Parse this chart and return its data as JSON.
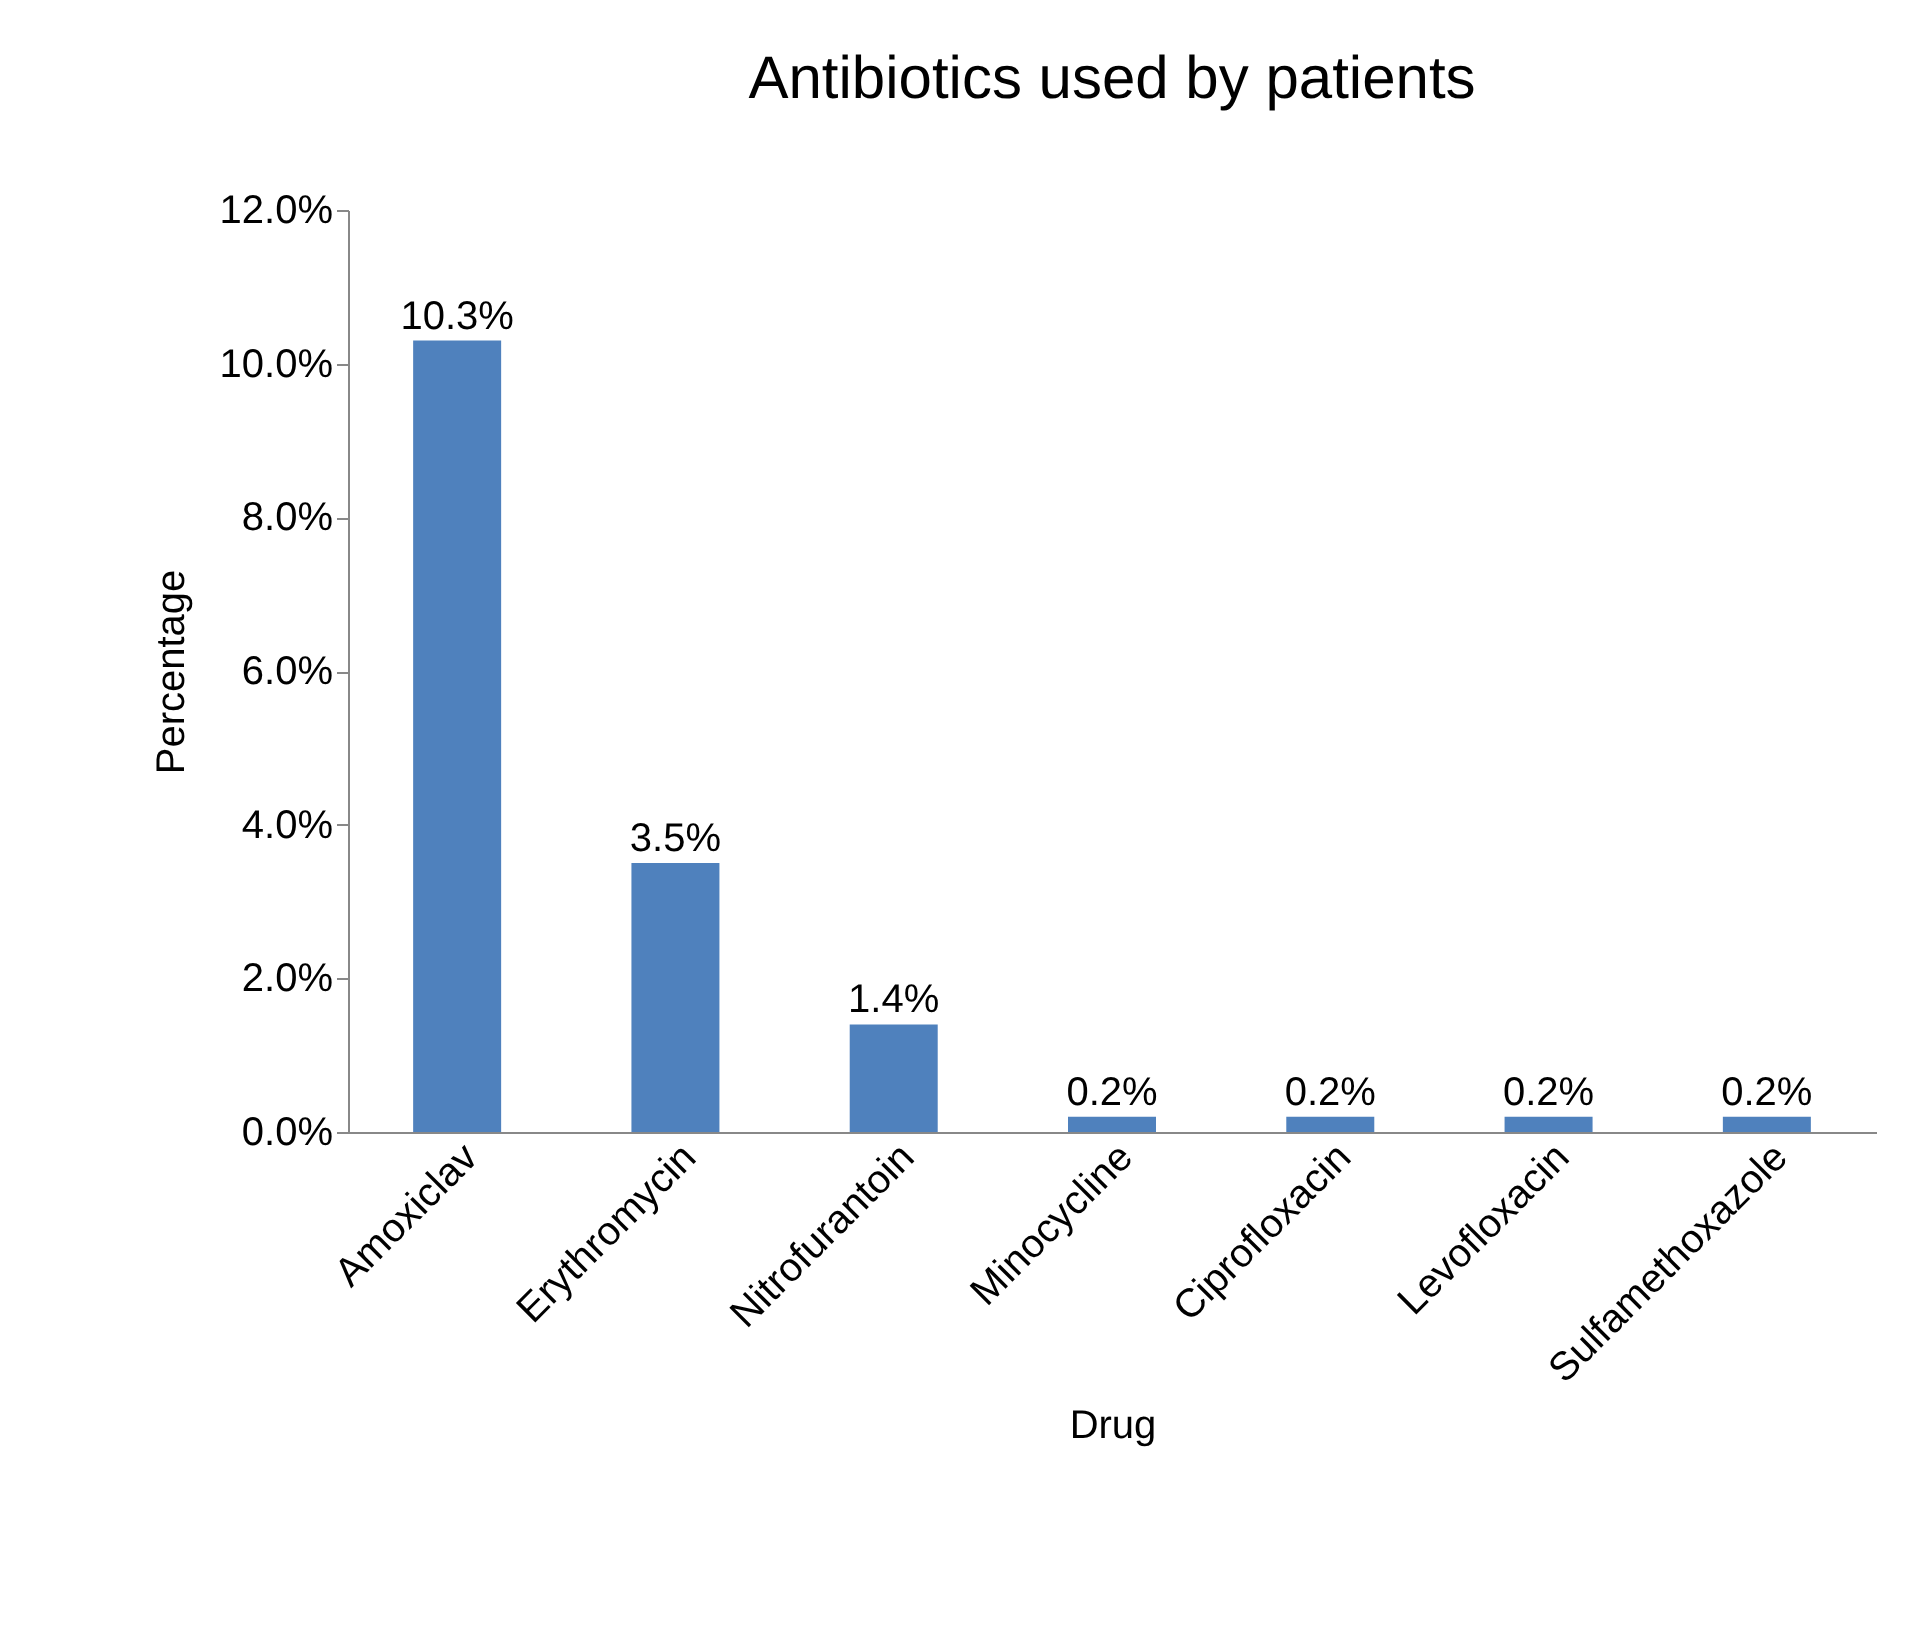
{
  "chart_data": {
    "type": "bar",
    "title": "Antibiotics used by patients",
    "xlabel": "Drug",
    "ylabel": "Percentage",
    "categories": [
      "Amoxiclav",
      "Erythromycin",
      "Nitrofurantoin",
      "Minocycline",
      "Ciprofloxacin",
      "Levofloxacin",
      "Sulfamethoxazole"
    ],
    "values": [
      10.3,
      3.5,
      1.4,
      0.2,
      0.2,
      0.2,
      0.2
    ],
    "value_labels": [
      "10.3%",
      "3.5%",
      "1.4%",
      "0.2%",
      "0.2%",
      "0.2%",
      "0.2%"
    ],
    "color": "#4f81bd",
    "ylim": [
      0,
      12
    ],
    "yticks": [
      {
        "value": 0,
        "label": "0.0%"
      },
      {
        "value": 2,
        "label": "2.0%"
      },
      {
        "value": 4,
        "label": "4.0%"
      },
      {
        "value": 6,
        "label": "6.0%"
      },
      {
        "value": 8,
        "label": "8.0%"
      },
      {
        "value": 10,
        "label": "10.0%"
      },
      {
        "value": 12,
        "label": "12.0%"
      }
    ],
    "grid": false
  }
}
